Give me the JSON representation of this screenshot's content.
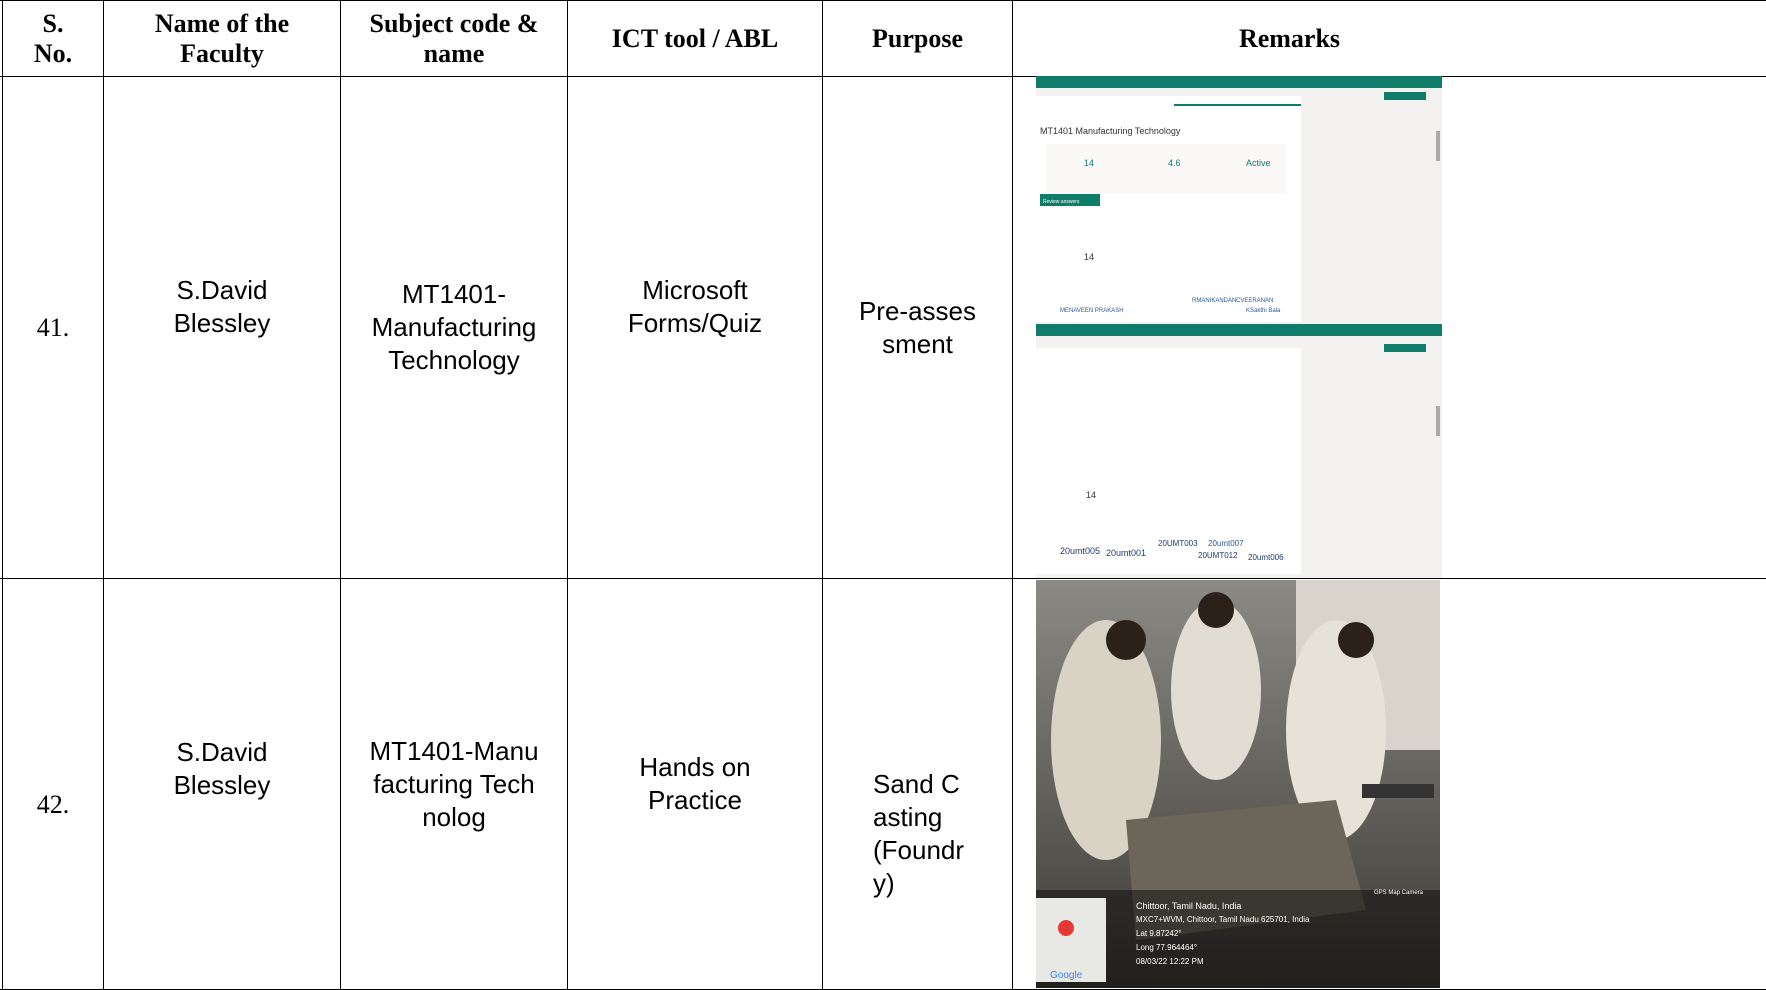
{
  "table": {
    "header": [
      "S. No.",
      "Name of the Faculty",
      "Subject code & name",
      "ICT tool / ABL",
      "Purpose",
      "Remarks"
    ],
    "rows": [
      [
        "41.",
        "S.David Blessley",
        "MT1401-Manufacturing Technology",
        "Microsoft Forms/Quiz",
        "Pre-assessment"
      ],
      [
        "42.",
        "S.David Blessley",
        "MT1401-Manufacturing Technolog",
        "Hands on Practice",
        "Sand Casting (Foundry)"
      ]
    ]
  },
  "screenshot": {
    "title": "MT1401 Manufacturing Technology",
    "responses": "14",
    "average": "4.6",
    "status": "Active",
    "review": "Review answers",
    "names": [
      "MENAVEEN PRAKASH",
      "RMANIKANDAN",
      "CVEERANAN",
      "KSakthi Bala"
    ],
    "codes": [
      "20umt005",
      "20umt001",
      "20UMT003",
      "20umt007",
      "20UMT012",
      "20umt006"
    ]
  },
  "photo": {
    "location": "Chittoor, Tamil Nadu, India",
    "address": "MXC7+WVM, Chittoor, Tamil Nadu 625701, India",
    "lat": "Lat 9.87242°",
    "long": "Long 77.964464°",
    "time": "08/03/22 12:22 PM",
    "app": "GPS Map Camera",
    "map": "Google"
  }
}
